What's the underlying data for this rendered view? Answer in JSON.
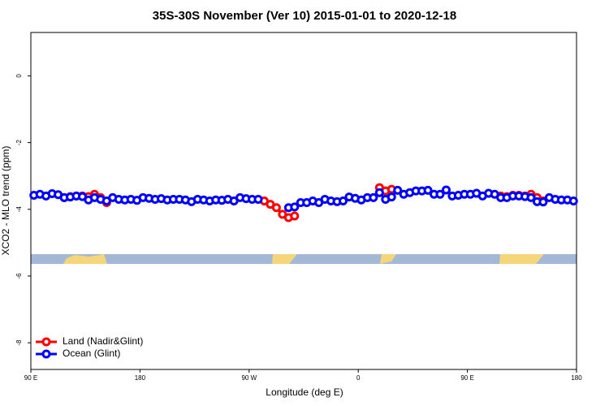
{
  "chart_data": {
    "type": "line",
    "title": "35S-30S November (Ver 10)   2015-01-01 to 2020-12-18",
    "xlabel": "Longitude (deg E)",
    "ylabel": "XCO2 - MLO trend (ppm)",
    "xlim": [
      90,
      540
    ],
    "xticks": [
      {
        "value": 90,
        "label": "90 E"
      },
      {
        "value": 180,
        "label": "180"
      },
      {
        "value": 270,
        "label": "90 W"
      },
      {
        "value": 360,
        "label": "0"
      },
      {
        "value": 450,
        "label": "90 E"
      },
      {
        "value": 540,
        "label": "180"
      }
    ],
    "ylim": [
      -8.8,
      1.3
    ],
    "yticks": [
      0,
      -2,
      -4,
      -6,
      -8
    ],
    "legend": "bottom-left",
    "series": [
      {
        "name": "Land (Nadir&Glint)",
        "color": "#ff0000",
        "x": [
          117.5,
          122.5,
          127.5,
          132.5,
          137.5,
          142.5,
          147.5,
          152.5,
          null,
          282.5,
          287.5,
          292.5,
          297.5,
          302.5,
          307.5,
          null,
          377.5,
          382.5,
          387.5,
          null,
          477.5,
          482.5,
          487.5,
          492.5,
          497.5,
          502.5,
          507.5,
          512.5
        ],
        "values": [
          -3.65,
          -3.62,
          -3.6,
          -3.6,
          -3.62,
          -3.55,
          -3.65,
          -3.8,
          null,
          -3.75,
          -3.85,
          -3.95,
          -4.15,
          -4.25,
          -4.2,
          null,
          -3.35,
          -3.45,
          -3.4,
          null,
          -3.6,
          -3.62,
          -3.58,
          -3.58,
          -3.6,
          -3.55,
          -3.65,
          -3.75
        ]
      },
      {
        "name": "Ocean (Glint)",
        "color": "#0000ff",
        "x": [
          92.5,
          97.5,
          102.5,
          107.5,
          112.5,
          117.5,
          122.5,
          127.5,
          132.5,
          137.5,
          142.5,
          147.5,
          152.5,
          157.5,
          162.5,
          167.5,
          172.5,
          177.5,
          182.5,
          187.5,
          192.5,
          197.5,
          202.5,
          207.5,
          212.5,
          217.5,
          222.5,
          227.5,
          232.5,
          237.5,
          242.5,
          247.5,
          252.5,
          257.5,
          262.5,
          267.5,
          272.5,
          277.5,
          282.5,
          287.5,
          292.5,
          297.5,
          302.5,
          307.5,
          312.5,
          317.5,
          322.5,
          327.5,
          332.5,
          337.5,
          342.5,
          347.5,
          352.5,
          357.5,
          362.5,
          367.5,
          372.5,
          377.5,
          382.5,
          387.5,
          392.5,
          397.5,
          402.5,
          407.5,
          412.5,
          417.5,
          422.5,
          427.5,
          432.5,
          437.5,
          442.5,
          447.5,
          452.5,
          457.5,
          462.5,
          467.5,
          472.5,
          477.5,
          482.5,
          487.5,
          492.5,
          497.5,
          502.5,
          507.5,
          512.5,
          517.5,
          522.5,
          527.5,
          532.5,
          537.5
        ],
        "values": [
          -3.58,
          -3.55,
          -3.6,
          -3.53,
          -3.56,
          -3.65,
          -3.63,
          -3.6,
          -3.62,
          -3.72,
          -3.65,
          -3.7,
          -3.75,
          -3.65,
          -3.7,
          -3.72,
          -3.7,
          -3.73,
          -3.65,
          -3.67,
          -3.7,
          -3.68,
          -3.72,
          -3.7,
          -3.7,
          -3.72,
          -3.77,
          -3.7,
          -3.72,
          -3.75,
          -3.72,
          -3.73,
          -3.7,
          -3.75,
          -3.65,
          -3.68,
          -3.7,
          -3.7,
          null,
          null,
          null,
          null,
          -3.95,
          -3.93,
          -3.8,
          -3.8,
          -3.75,
          -3.8,
          -3.7,
          -3.75,
          -3.77,
          -3.75,
          -3.63,
          -3.67,
          -3.72,
          -3.65,
          -3.65,
          -3.5,
          -3.7,
          -3.63,
          -3.43,
          -3.55,
          -3.5,
          -3.45,
          -3.45,
          -3.43,
          -3.55,
          -3.55,
          -3.42,
          -3.6,
          -3.58,
          -3.55,
          -3.55,
          -3.52,
          -3.6,
          -3.52,
          -3.55,
          -3.65,
          -3.65,
          -3.6,
          -3.6,
          -3.62,
          -3.65,
          -3.77,
          -3.78,
          -3.65,
          -3.7,
          -3.72,
          -3.72,
          -3.75
        ]
      }
    ]
  }
}
